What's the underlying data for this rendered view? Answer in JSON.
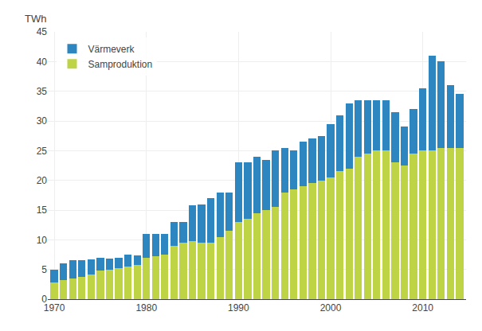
{
  "chart_data": {
    "type": "bar",
    "stacked": true,
    "ylabel": "TWh",
    "x": [
      1970,
      1971,
      1972,
      1973,
      1974,
      1975,
      1976,
      1977,
      1978,
      1979,
      1980,
      1981,
      1982,
      1983,
      1984,
      1985,
      1986,
      1987,
      1988,
      1989,
      1990,
      1991,
      1992,
      1993,
      1994,
      1995,
      1996,
      1997,
      1998,
      1999,
      2000,
      2001,
      2002,
      2003,
      2004,
      2005,
      2006,
      2007,
      2008,
      2009,
      2010,
      2011,
      2012,
      2013,
      2014
    ],
    "series": [
      {
        "name": "Samproduktion",
        "color": "#bed444",
        "values": [
          2.8,
          3.2,
          3.5,
          3.8,
          4.2,
          4.8,
          5.0,
          5.2,
          5.5,
          5.8,
          7.0,
          7.2,
          7.5,
          9.0,
          9.5,
          9.8,
          9.5,
          9.5,
          10.5,
          11.5,
          13.0,
          13.5,
          14.5,
          15.0,
          15.5,
          18.0,
          18.5,
          19.0,
          19.5,
          20.0,
          20.5,
          21.5,
          22.0,
          24.0,
          24.5,
          25.0,
          25.0,
          23.0,
          22.5,
          24.5,
          25.0,
          25.0,
          25.5,
          25.5,
          25.5
        ]
      },
      {
        "name": "Värmeverk",
        "color": "#2e86c1",
        "values": [
          2.2,
          2.8,
          3.0,
          2.8,
          2.5,
          2.2,
          1.8,
          1.8,
          2.0,
          1.5,
          4.0,
          3.8,
          3.5,
          4.0,
          3.5,
          6.0,
          6.5,
          7.5,
          7.5,
          6.5,
          10.0,
          9.5,
          9.5,
          8.5,
          9.5,
          7.5,
          6.5,
          7.5,
          7.5,
          7.5,
          9.0,
          9.5,
          11.0,
          9.5,
          9.0,
          8.5,
          8.5,
          8.5,
          6.5,
          7.5,
          10.5,
          16.0,
          14.5,
          10.5,
          9.0
        ]
      }
    ],
    "xlim": [
      1969.3,
      2014.7
    ],
    "xticks": [
      1970,
      1980,
      1990,
      2000,
      2010
    ],
    "ylim": [
      0,
      45
    ],
    "yticks": [
      0,
      5,
      10,
      15,
      20,
      25,
      30,
      35,
      40,
      45
    ],
    "grid": true,
    "legend": "upper left"
  }
}
